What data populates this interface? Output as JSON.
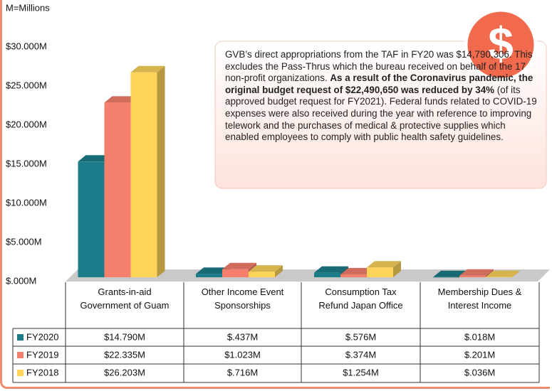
{
  "chart_data": {
    "type": "bar",
    "unit_label": "M=Millions",
    "icon_text": "$",
    "annotation": [
      {
        "text": "GVB’s direct appropriations from the TAF in FY20 was $14,790,306. This excludes the Pass-Thrus which the bureau received on behalf of the 17 non-profit organizations. ",
        "bold": false
      },
      {
        "text": "As a result of the Coronavirus pandemic, the original budget request of $22,490,650 was reduced by 34%",
        "bold": true
      },
      {
        "text": " (of its approved budget request for FY2021). Federal funds related to COVID-19 expenses were also received during the year with reference to improving telework and the purchases of medical & protective supplies which enabled employees to comply with public health safety guidelines.",
        "bold": false
      }
    ],
    "categories": [
      "Grants-in-aid Government of Guam",
      "Other Income Event Sponsorships",
      "Consumption Tax Refund Japan Office",
      "Membership Dues & Interest Income"
    ],
    "series": [
      {
        "name": "FY2020",
        "color": "#1c7d8a",
        "values": [
          14.79,
          0.437,
          0.576,
          0.018
        ],
        "value_labels": [
          "$14.790M",
          "$.437M",
          "$.576M",
          "$.018M"
        ]
      },
      {
        "name": "FY2019",
        "color": "#f47f6c",
        "values": [
          22.335,
          1.023,
          0.374,
          0.201
        ],
        "value_labels": [
          "$22.335M",
          "$1.023M",
          "$.374M",
          "$.201M"
        ]
      },
      {
        "name": "FY2018",
        "color": "#fdd35a",
        "values": [
          26.203,
          0.716,
          1.254,
          0.036
        ],
        "value_labels": [
          "$26.203M",
          "$.716M",
          "$1.254M",
          "$.036M"
        ]
      }
    ],
    "ylim": [
      0,
      30
    ],
    "yticks": [
      {
        "value": 0,
        "label": "$.000M"
      },
      {
        "value": 5,
        "label": "$5.000M"
      },
      {
        "value": 10,
        "label": "$10.000M"
      },
      {
        "value": 15,
        "label": "$15.000M"
      },
      {
        "value": 20,
        "label": "$20.000M"
      },
      {
        "value": 25,
        "label": "$25.000M"
      },
      {
        "value": 30,
        "label": "$30.000M"
      }
    ],
    "grid": false
  }
}
